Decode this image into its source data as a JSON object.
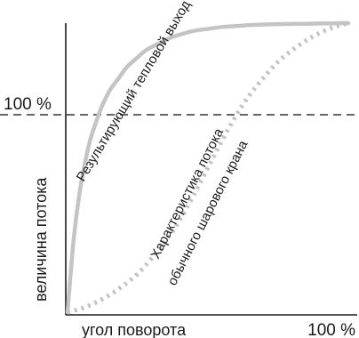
{
  "chart_data": {
    "type": "line",
    "xlabel": "угол поворота",
    "ylabel": "величина потока",
    "x_tick_label": "100 %",
    "y_tick_label": "100 %",
    "xlim": [
      0,
      100
    ],
    "ylim": [
      0,
      150
    ],
    "grid": false,
    "reference_line": {
      "y": 100,
      "style": "dashed",
      "color": "#333333"
    },
    "series": [
      {
        "name": "Результирующий тепловой выход",
        "style": "solid",
        "color": "#c4c4c4",
        "annotation_lines": [
          "Результирующий тепловой выход"
        ],
        "x": [
          0,
          2,
          4,
          6,
          8,
          10,
          12,
          15,
          18,
          21,
          24,
          28,
          32,
          36,
          40,
          45,
          50,
          55,
          60,
          65,
          70,
          75,
          80,
          85,
          90,
          95,
          100
        ],
        "y": [
          0,
          35,
          59,
          76,
          89,
          98,
          106,
          115,
          121,
          127,
          131,
          136,
          139,
          142,
          144,
          146,
          147,
          148,
          148.5,
          149,
          149.3,
          149.5,
          149.6,
          149.7,
          149.8,
          149.9,
          150
        ]
      },
      {
        "name": "Характеристика потока обычного шарового крана",
        "style": "dotted",
        "color": "#c4c4c4",
        "annotation_lines": [
          "Характеристика потока",
          "обычного шарового крана"
        ],
        "x": [
          0,
          5,
          10,
          15,
          20,
          25,
          30,
          35,
          40,
          45,
          50,
          55,
          60,
          65,
          70,
          75,
          80,
          85,
          90,
          95,
          100
        ],
        "y": [
          0,
          2,
          5,
          9,
          14,
          20,
          28,
          37,
          48,
          61,
          75,
          89,
          102,
          113,
          122,
          130,
          136,
          141,
          145,
          148,
          150
        ]
      }
    ]
  }
}
